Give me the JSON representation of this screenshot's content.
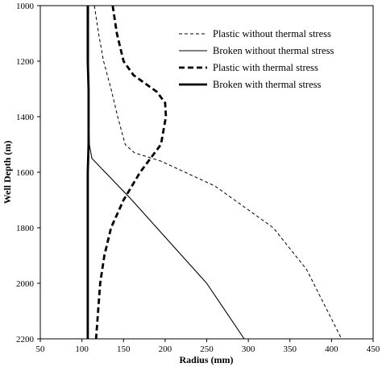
{
  "chart_data": {
    "type": "line",
    "title": "",
    "xlabel": "Radius (mm)",
    "ylabel": "Well Depth (m)",
    "xlim": [
      50,
      450
    ],
    "ylim": [
      1000,
      2200
    ],
    "y_inverted": true,
    "x_ticks": [
      50,
      100,
      150,
      200,
      250,
      300,
      350,
      400,
      450
    ],
    "y_ticks": [
      1000,
      1200,
      1400,
      1600,
      1800,
      2000,
      2200
    ],
    "grid": false,
    "legend_position": "top-right",
    "series": [
      {
        "name": "Plastic without thermal stress",
        "style": "thin-dashed",
        "color": "#000000",
        "points": [
          [
            115,
            1000
          ],
          [
            120,
            1100
          ],
          [
            126,
            1200
          ],
          [
            135,
            1300
          ],
          [
            143,
            1400
          ],
          [
            152,
            1500
          ],
          [
            163,
            1530
          ],
          [
            195,
            1560
          ],
          [
            260,
            1650
          ],
          [
            330,
            1800
          ],
          [
            370,
            1950
          ],
          [
            412,
            2200
          ]
        ]
      },
      {
        "name": "Broken without thermal stress",
        "style": "thin-solid",
        "color": "#000000",
        "points": [
          [
            108,
            1000
          ],
          [
            108,
            1200
          ],
          [
            108,
            1400
          ],
          [
            109,
            1500
          ],
          [
            112,
            1550
          ],
          [
            160,
            1700
          ],
          [
            205,
            1850
          ],
          [
            250,
            2000
          ],
          [
            295,
            2200
          ]
        ]
      },
      {
        "name": "Plastic with thermal stress",
        "style": "thick-dashed",
        "color": "#000000",
        "points": [
          [
            137,
            1000
          ],
          [
            142,
            1100
          ],
          [
            150,
            1200
          ],
          [
            162,
            1250
          ],
          [
            190,
            1310
          ],
          [
            200,
            1350
          ],
          [
            201,
            1400
          ],
          [
            195,
            1500
          ],
          [
            170,
            1600
          ],
          [
            150,
            1700
          ],
          [
            135,
            1800
          ],
          [
            127,
            1900
          ],
          [
            122,
            2000
          ],
          [
            117,
            2200
          ]
        ]
      },
      {
        "name": "Broken with thermal stress",
        "style": "thick-solid",
        "color": "#000000",
        "points": [
          [
            107,
            1000
          ],
          [
            107,
            1200
          ],
          [
            108,
            1300
          ],
          [
            108,
            1400
          ],
          [
            108,
            1500
          ],
          [
            107,
            1600
          ],
          [
            107,
            1800
          ],
          [
            107,
            2000
          ],
          [
            107,
            2200
          ]
        ]
      }
    ]
  }
}
